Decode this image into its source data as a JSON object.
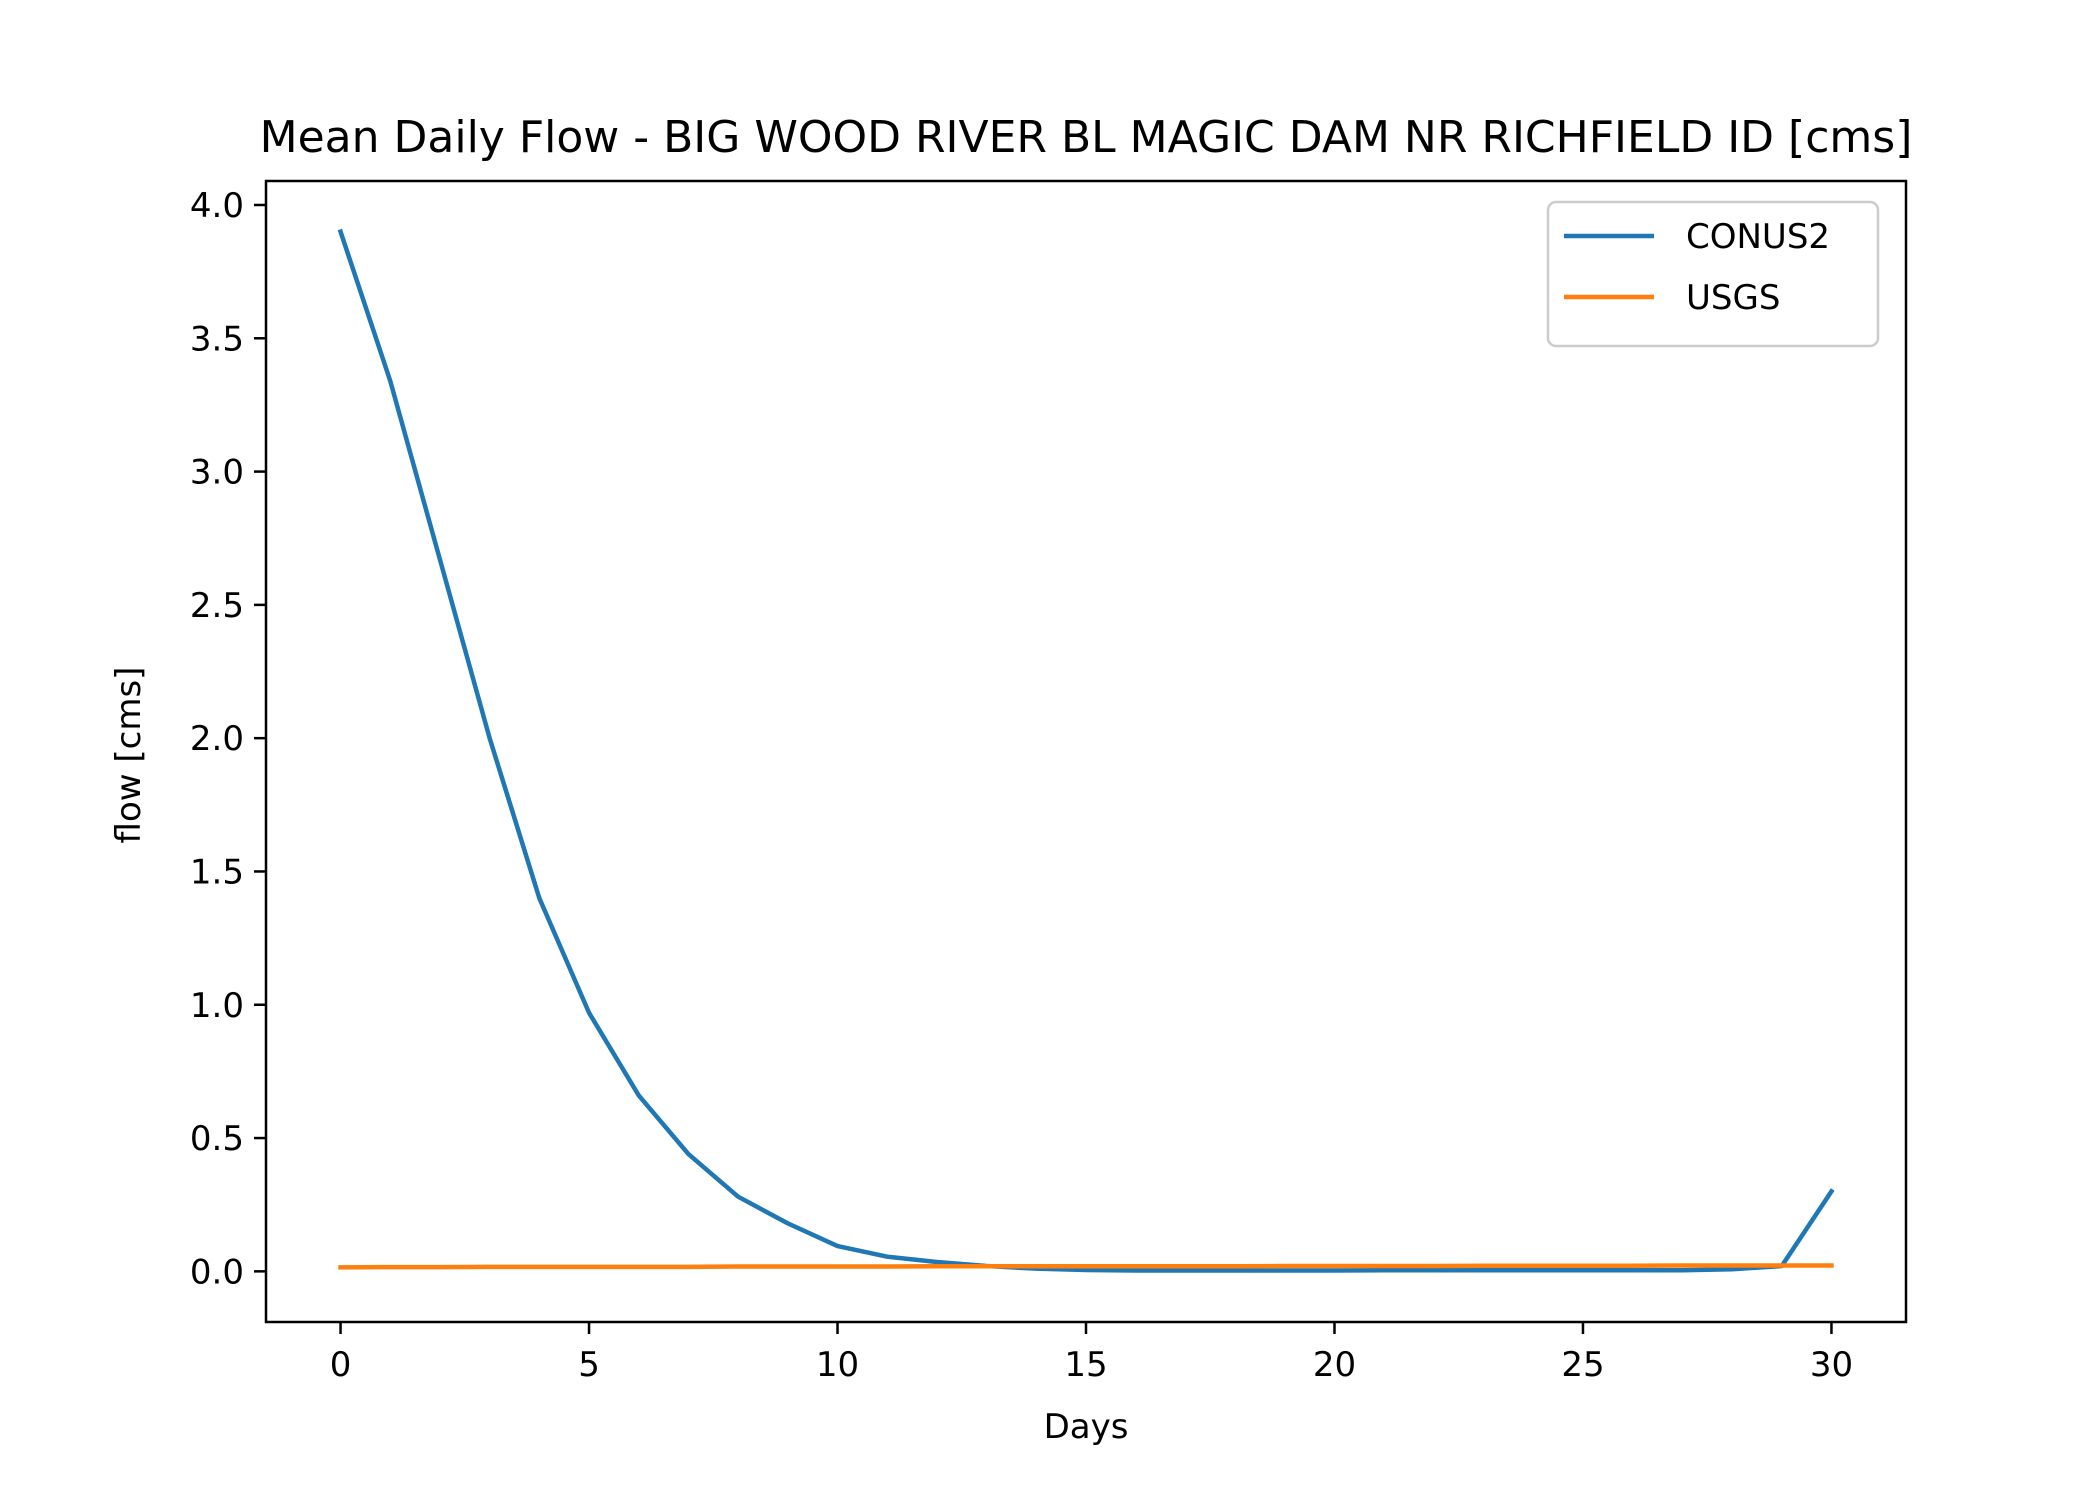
{
  "chart_data": {
    "type": "line",
    "title": "Mean Daily Flow - BIG WOOD RIVER BL MAGIC DAM NR RICHFIELD ID [cms]",
    "xlabel": "Days",
    "ylabel": "flow [cms]",
    "xlim": [
      -1.5,
      31.5
    ],
    "ylim": [
      -0.19,
      4.09
    ],
    "xticks": [
      0,
      5,
      10,
      15,
      20,
      25,
      30
    ],
    "xtick_labels": [
      "0",
      "5",
      "10",
      "15",
      "20",
      "25",
      "30"
    ],
    "yticks": [
      0.0,
      0.5,
      1.0,
      1.5,
      2.0,
      2.5,
      3.0,
      3.5,
      4.0
    ],
    "ytick_labels": [
      "0.0",
      "0.5",
      "1.0",
      "1.5",
      "2.0",
      "2.5",
      "3.0",
      "3.5",
      "4.0"
    ],
    "grid": false,
    "legend_position": "top-right",
    "x": [
      0,
      1,
      2,
      3,
      4,
      5,
      6,
      7,
      8,
      9,
      10,
      11,
      12,
      13,
      14,
      15,
      16,
      17,
      18,
      19,
      20,
      21,
      22,
      23,
      24,
      25,
      26,
      27,
      28,
      29,
      30
    ],
    "series": [
      {
        "name": "CONUS2",
        "color": "#1f77b4",
        "values": [
          3.9,
          3.34,
          2.67,
          2.0,
          1.4,
          0.97,
          0.66,
          0.44,
          0.28,
          0.18,
          0.095,
          0.055,
          0.035,
          0.02,
          0.01,
          0.005,
          0.003,
          0.003,
          0.003,
          0.003,
          0.003,
          0.004,
          0.004,
          0.004,
          0.004,
          0.004,
          0.004,
          0.004,
          0.008,
          0.02,
          0.3
        ]
      },
      {
        "name": "USGS",
        "color": "#ff7f0e",
        "values": [
          0.015,
          0.016,
          0.016,
          0.017,
          0.017,
          0.017,
          0.017,
          0.017,
          0.018,
          0.018,
          0.018,
          0.018,
          0.019,
          0.019,
          0.019,
          0.019,
          0.019,
          0.019,
          0.019,
          0.02,
          0.02,
          0.02,
          0.02,
          0.021,
          0.021,
          0.021,
          0.021,
          0.022,
          0.022,
          0.022,
          0.022
        ]
      }
    ]
  }
}
